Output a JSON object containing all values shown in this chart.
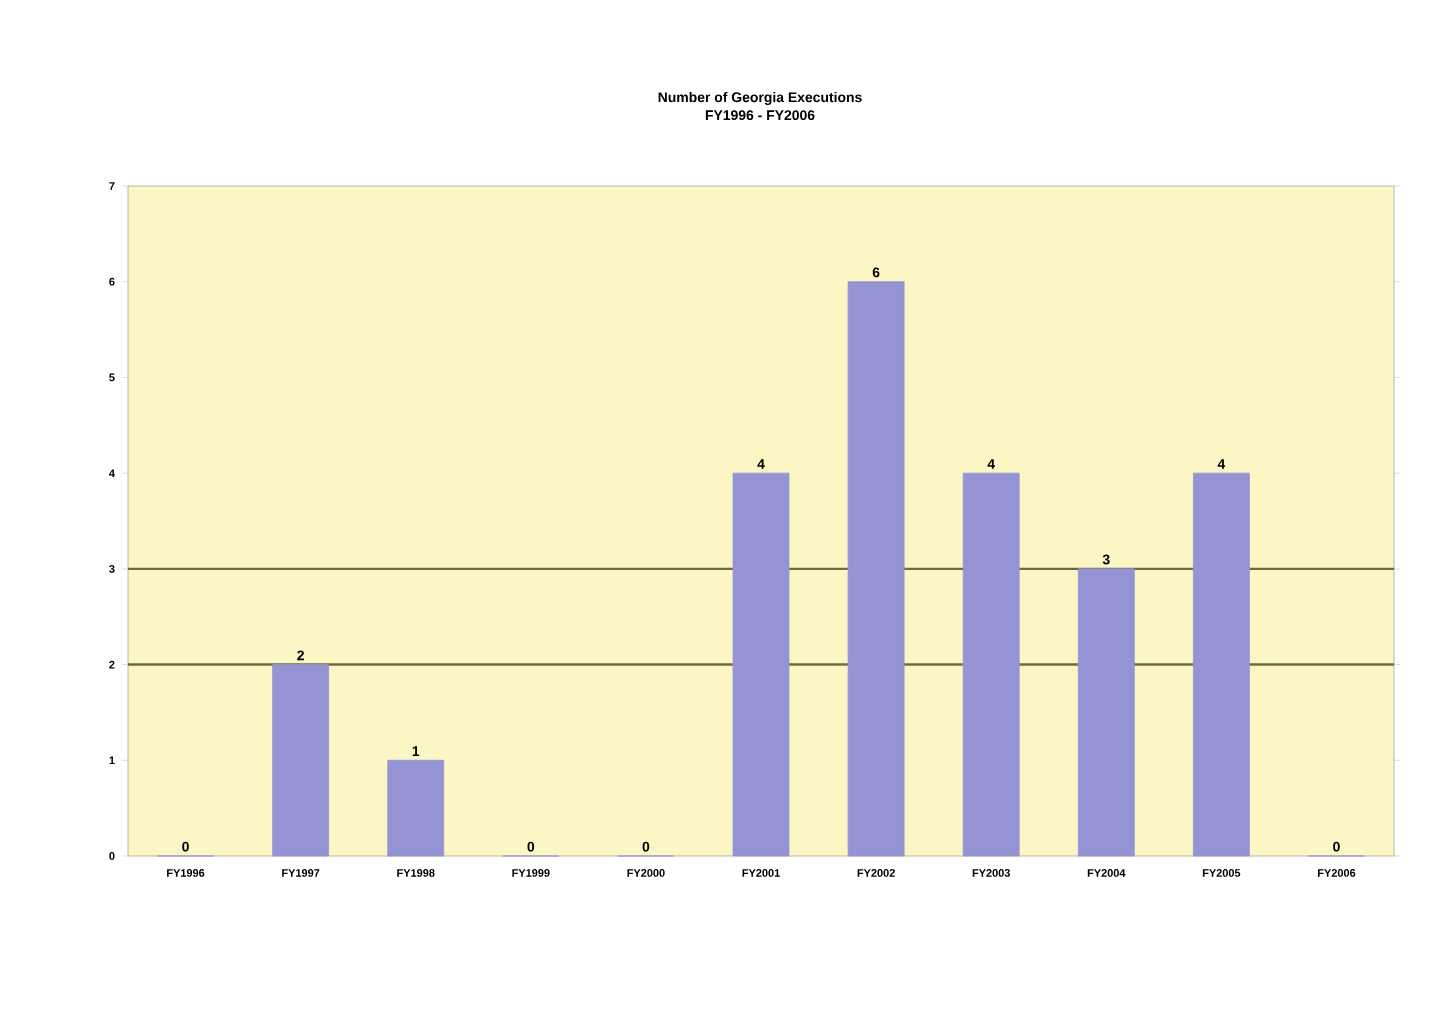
{
  "chart_data": {
    "type": "bar",
    "title": "Number of Georgia Executions",
    "subtitle": "FY1996 - FY2006",
    "categories": [
      "FY1996",
      "FY1997",
      "FY1998",
      "FY1999",
      "FY2000",
      "FY2001",
      "FY2002",
      "FY2003",
      "FY2004",
      "FY2005",
      "FY2006"
    ],
    "values": [
      0,
      2,
      1,
      0,
      0,
      4,
      6,
      4,
      3,
      4,
      0
    ],
    "color": "#9494d4",
    "ylim": [
      0,
      7
    ],
    "yticks": [
      0,
      1,
      2,
      3,
      4,
      5,
      6,
      7
    ],
    "data_labels": true,
    "ref_lines": [
      {
        "axis": "y",
        "value": 2,
        "color": "#7d7a4e"
      },
      {
        "axis": "y",
        "value": 3,
        "color": "#6e6b40"
      }
    ]
  }
}
